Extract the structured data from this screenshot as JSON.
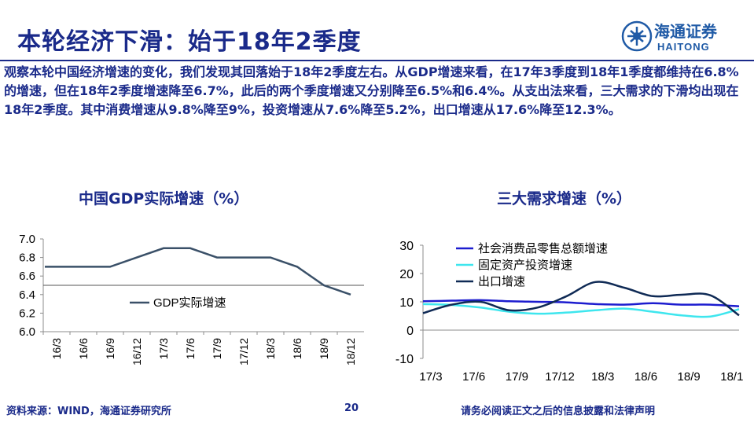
{
  "page": {
    "title": "本轮经济下滑：始于18年2季度",
    "summary": "观察本轮中国经济增速的变化，我们发现其回落始于18年2季度左右。从GDP增速来看，在17年3季度到18年1季度都维持在6.8%的增速，但在18年2季度增速降至6.7%，此后的两个季度增速又分别降至6.5%和6.4%。从支出法来看，三大需求的下滑均出现在18年2季度。其中消费增速从9.8%降至9%，投资增速从7.6%降至5.2%，出口增速从17.6%降至12.3%。"
  },
  "logo": {
    "name_cn": "海通证券",
    "name_en": "HAITONG"
  },
  "footer": {
    "source": "资料来源：WIND，海通证券研究所",
    "page_number": "20",
    "disclaimer": "请务必阅读正文之后的信息披露和法律声明"
  },
  "colors": {
    "title": "#1a2a8a",
    "gdp_line": "#3a5068",
    "consumption": "#1c1ccf",
    "investment": "#3ee6ee",
    "export": "#0f2a55",
    "axis": "#8c8c8c"
  },
  "chart_data": [
    {
      "type": "line",
      "title": "中国GDP实际增速（%）",
      "categories": [
        "16/3",
        "16/6",
        "16/9",
        "16/12",
        "17/3",
        "17/6",
        "17/9",
        "17/12",
        "18/3",
        "18/6",
        "18/9",
        "18/12"
      ],
      "series": [
        {
          "name": "GDP实际增速",
          "values": [
            6.7,
            6.7,
            6.7,
            6.8,
            6.9,
            6.9,
            6.8,
            6.8,
            6.8,
            6.7,
            6.5,
            6.4
          ]
        }
      ],
      "reference_line": 6.5,
      "ylim": [
        6.0,
        7.0
      ],
      "yticks": [
        "6.0",
        "6.2",
        "6.4",
        "6.6",
        "6.8",
        "7.0"
      ],
      "legend": "center-right",
      "grid": false
    },
    {
      "type": "line",
      "title": "三大需求增速（%）",
      "x_tick_labels": [
        "17/3",
        "17/6",
        "17/9",
        "17/12",
        "18/3",
        "18/6",
        "18/9",
        "18/1"
      ],
      "series": [
        {
          "name": "社会消费品零售总额增速",
          "values": [
            10.2,
            10.4,
            10.6,
            10.2,
            10.0,
            9.8,
            9.2,
            9.0,
            9.5,
            9.0,
            9.0,
            8.4
          ]
        },
        {
          "name": "固定资产投资增速",
          "values": [
            9.2,
            8.9,
            8.0,
            6.5,
            5.8,
            6.2,
            7.0,
            7.6,
            6.5,
            5.2,
            4.8,
            7.4
          ]
        },
        {
          "name": "出口增速",
          "values": [
            6.0,
            9.0,
            10.0,
            7.0,
            8.0,
            12.0,
            17.0,
            15.0,
            12.0,
            12.5,
            12.3,
            5.2
          ]
        }
      ],
      "ylim": [
        -10,
        30
      ],
      "yticks": [
        "30",
        "20",
        "10",
        "0",
        "-10"
      ],
      "legend": "top-left",
      "grid": false
    }
  ]
}
